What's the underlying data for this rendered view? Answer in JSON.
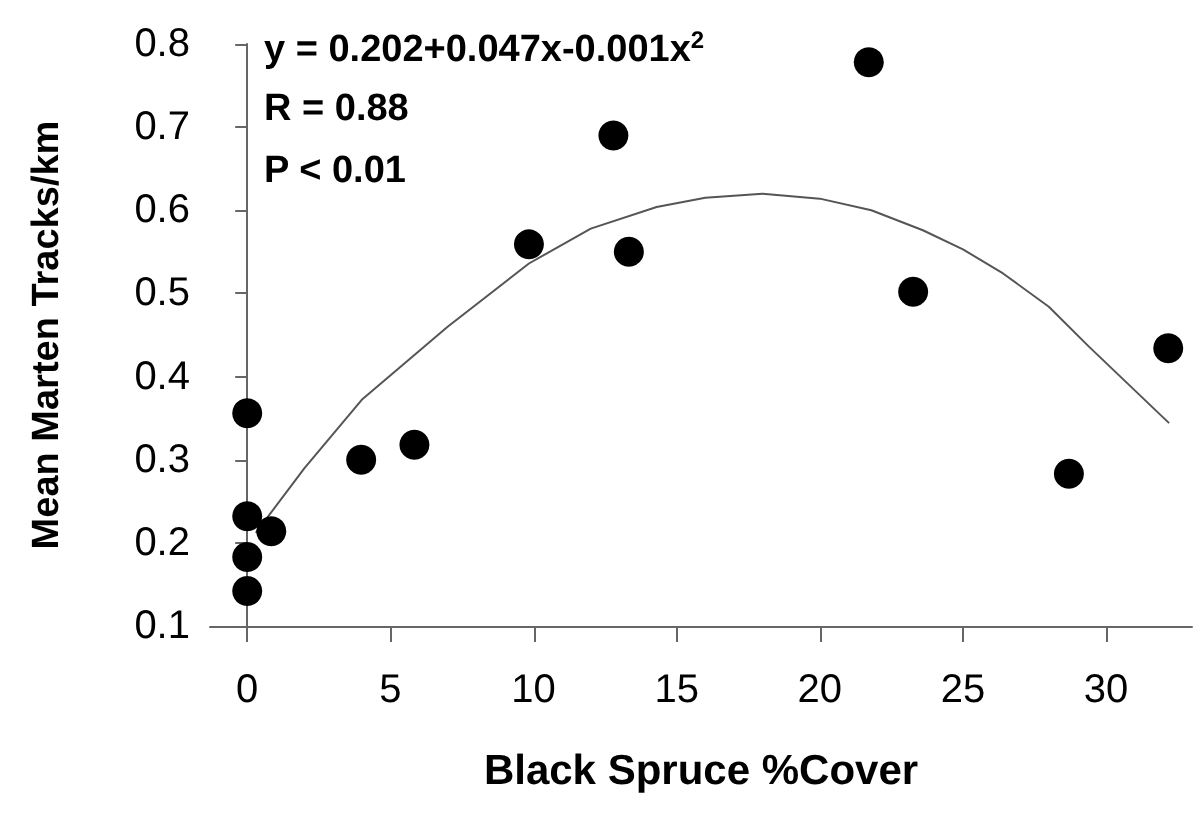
{
  "chart_data": {
    "type": "scatter",
    "xlabel": "Black Spruce %Cover",
    "ylabel": "Mean Marten Tracks/km",
    "series": [
      {
        "marker": "circle",
        "color": "#000000",
        "x": [
          0,
          0,
          0.84,
          0,
          0,
          3.98,
          5.84,
          9.84,
          12.79,
          13.33,
          21.71,
          23.26,
          28.7,
          32.17
        ],
        "values": [
          0.356,
          0.232,
          0.214,
          0.183,
          0.142,
          0.3,
          0.318,
          0.559,
          0.69,
          0.55,
          0.778,
          0.502,
          0.283,
          0.434
        ]
      },
      {
        "type": "line",
        "marker": "none",
        "color": "#555555",
        "x": [
          0.3,
          2,
          4,
          7,
          9.84,
          12,
          14.3,
          16,
          18,
          20,
          21.8,
          23.6,
          25,
          26.4,
          28,
          29.4,
          30.8,
          32.2
        ],
        "values": [
          0.212,
          0.29,
          0.372,
          0.46,
          0.536,
          0.578,
          0.604,
          0.615,
          0.62,
          0.614,
          0.6,
          0.576,
          0.553,
          0.524,
          0.484,
          0.436,
          0.39,
          0.344
        ]
      }
    ],
    "annotations": [
      "y = 0.202+0.047x-0.001x$^{2}$",
      "R = 0.88",
      "P < 0.01"
    ],
    "xlim": [
      -1.3,
      33
    ],
    "xticks": [
      0,
      5,
      10,
      15,
      20,
      25,
      30
    ],
    "ylim": [
      0.1,
      0.8
    ],
    "yticks": [
      0.1,
      0.2,
      0.3,
      0.4,
      0.5,
      0.6,
      0.7,
      0.8
    ],
    "grid": false
  }
}
